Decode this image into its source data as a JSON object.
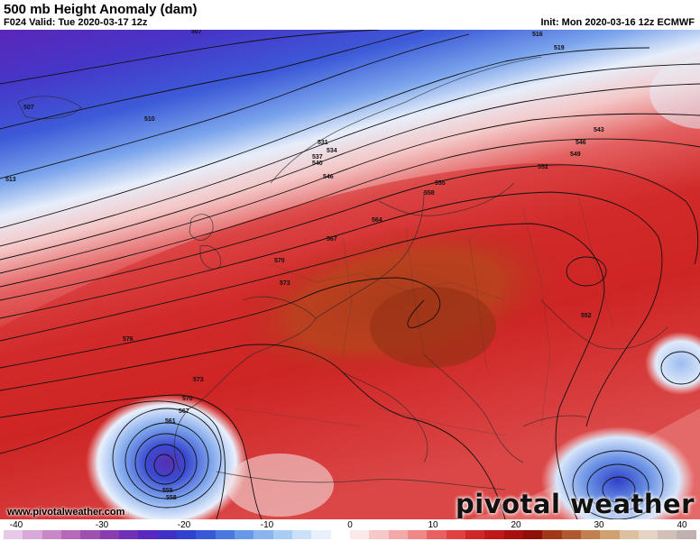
{
  "header": {
    "title": "500 mb Height Anomaly (dam)",
    "valid": "F024 Valid: Tue 2020-03-17 12z",
    "init": "Init: Mon 2020-03-16 12z ECMWF"
  },
  "footer": {
    "site": "www.pivotalweather.com",
    "brand": "pivotal weather"
  },
  "contour_labels": [
    "507",
    "510",
    "513",
    "516",
    "519",
    "531",
    "534",
    "537",
    "540",
    "543",
    "546",
    "549",
    "552",
    "555",
    "558",
    "561",
    "564",
    "567",
    "570",
    "573",
    "576"
  ],
  "colorbar": {
    "ticks": [
      "-40",
      "-30",
      "-20",
      "-10",
      "0",
      "10",
      "20",
      "30",
      "40"
    ],
    "range": [
      -40,
      40
    ],
    "colors": [
      "#e8c8e8",
      "#d8a8d8",
      "#c888c8",
      "#b868b8",
      "#a050b0",
      "#8a3cb0",
      "#7030b8",
      "#5828c0",
      "#4030c8",
      "#3040d0",
      "#3858d8",
      "#4878e0",
      "#6898e8",
      "#88b4f0",
      "#a8ccf4",
      "#c8e0f8",
      "#e8f0fc",
      "#ffffff",
      "#fce8e8",
      "#f8c8c8",
      "#f4a8a8",
      "#f08888",
      "#e86060",
      "#e04040",
      "#d02828",
      "#c01818",
      "#a81010",
      "#901008",
      "#a03818",
      "#b05830",
      "#c08050",
      "#d0a070",
      "#dcc0a0",
      "#e4d4c4",
      "#d0c0b8",
      "#c0b0b0"
    ]
  }
}
